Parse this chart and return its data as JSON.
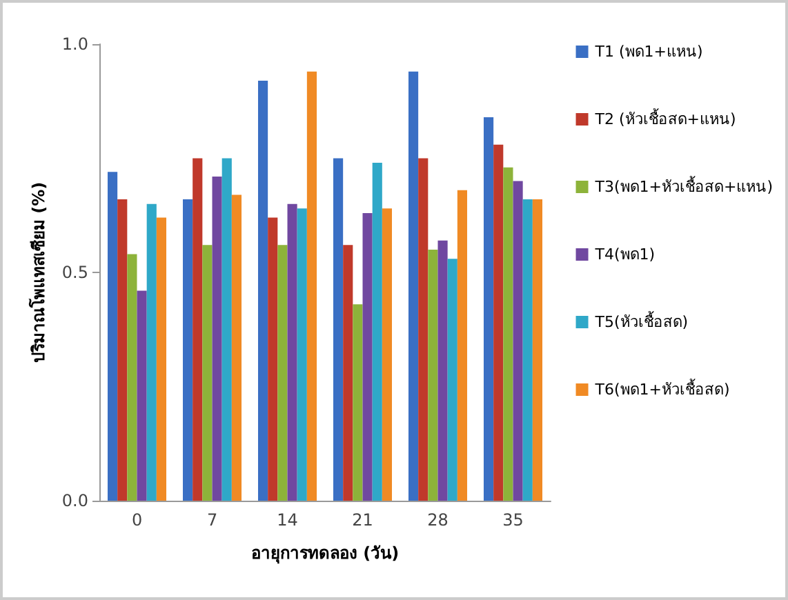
{
  "chart_data": {
    "type": "bar",
    "xlabel": "อายุการทดลอง (วัน)",
    "ylabel": "ปริมาณโพแทสเซียม (%)",
    "categories": [
      "0",
      "7",
      "14",
      "21",
      "28",
      "35"
    ],
    "series": [
      {
        "name": "T1 (พด1+แหน)",
        "color": "#3a6fc4",
        "values": [
          0.72,
          0.66,
          0.92,
          0.75,
          0.94,
          0.84
        ]
      },
      {
        "name": "T2 (หัวเชื้อสด+แหน)",
        "color": "#c0392b",
        "values": [
          0.66,
          0.75,
          0.62,
          0.56,
          0.75,
          0.78
        ]
      },
      {
        "name": "T3(พด1+หัวเชื้อสด+แหน)",
        "color": "#8db33a",
        "values": [
          0.54,
          0.56,
          0.56,
          0.43,
          0.55,
          0.73
        ]
      },
      {
        "name": "T4(พด1)",
        "color": "#7048a0",
        "values": [
          0.46,
          0.71,
          0.65,
          0.63,
          0.57,
          0.7
        ]
      },
      {
        "name": "T5(หัวเชื้อสด)",
        "color": "#2fa8c8",
        "values": [
          0.65,
          0.75,
          0.64,
          0.74,
          0.53,
          0.66
        ]
      },
      {
        "name": "T6(พด1+หัวเชื้อสด)",
        "color": "#f08a24",
        "values": [
          0.62,
          0.67,
          0.94,
          0.64,
          0.68,
          0.66
        ]
      }
    ],
    "ylim": [
      0,
      1
    ],
    "yticks": [
      {
        "value": 0,
        "label": "0.0"
      },
      {
        "value": 0.5,
        "label": "0.5"
      },
      {
        "value": 1,
        "label": "1.0"
      }
    ],
    "grid": false,
    "legend": "right"
  }
}
